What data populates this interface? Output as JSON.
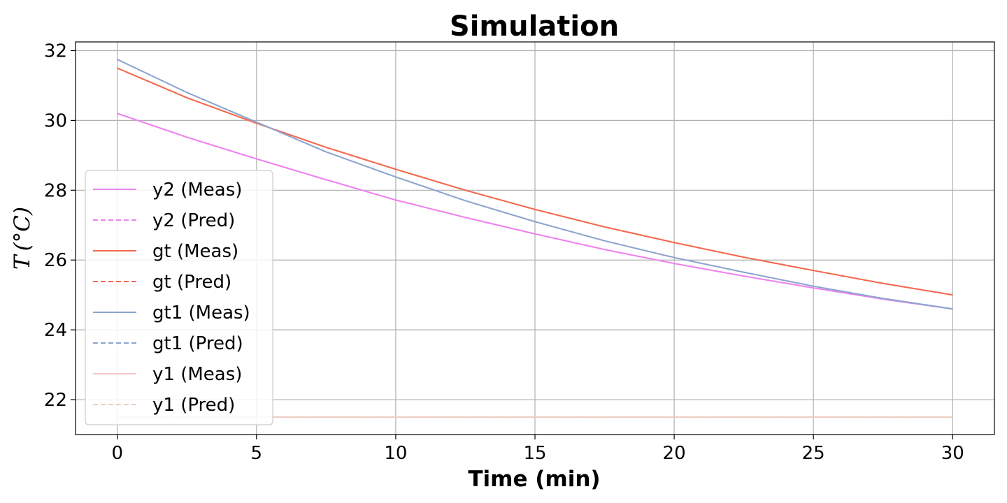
{
  "chart_data": {
    "type": "line",
    "title": "Simulation",
    "xlabel": "Time (min)",
    "ylabel_main": "T",
    "ylabel_unit": "(°C)",
    "xlim": [
      -1.5,
      31.5
    ],
    "ylim": [
      21.0,
      32.25
    ],
    "xticks": [
      0,
      5,
      10,
      15,
      20,
      25,
      30
    ],
    "yticks": [
      22,
      24,
      26,
      28,
      30,
      32
    ],
    "grid": true,
    "legend_position": "lower-left",
    "x": [
      0,
      2.5,
      5,
      7.5,
      10,
      12.5,
      15,
      17.5,
      20,
      22.5,
      25,
      27.5,
      30
    ],
    "series": [
      {
        "name": "y2 (Meas)",
        "color": "#ee82ee",
        "dash": "solid",
        "values": [
          30.2,
          29.52,
          28.9,
          28.3,
          27.72,
          27.22,
          26.75,
          26.3,
          25.9,
          25.54,
          25.2,
          24.88,
          24.6
        ]
      },
      {
        "name": "y2 (Pred)",
        "color": "#ee82ee",
        "dash": "dashed",
        "values": [
          30.2,
          29.52,
          28.9,
          28.3,
          27.72,
          27.22,
          26.75,
          26.3,
          25.9,
          25.54,
          25.2,
          24.88,
          24.6
        ]
      },
      {
        "name": "gt (Meas)",
        "color": "#f4694f",
        "dash": "solid",
        "values": [
          31.5,
          30.65,
          29.92,
          29.23,
          28.6,
          28.0,
          27.45,
          26.95,
          26.5,
          26.08,
          25.7,
          25.33,
          25.0
        ]
      },
      {
        "name": "gt (Pred)",
        "color": "#f4694f",
        "dash": "dashed",
        "values": [
          31.5,
          30.65,
          29.92,
          29.23,
          28.6,
          28.0,
          27.45,
          26.95,
          26.5,
          26.08,
          25.7,
          25.33,
          25.0
        ]
      },
      {
        "name": "gt1 (Meas)",
        "color": "#8ea5cf",
        "dash": "solid",
        "values": [
          31.75,
          30.8,
          29.95,
          29.1,
          28.38,
          27.7,
          27.1,
          26.55,
          26.07,
          25.65,
          25.25,
          24.9,
          24.6
        ]
      },
      {
        "name": "gt1 (Pred)",
        "color": "#8ea5cf",
        "dash": "dashed",
        "values": [
          31.75,
          30.8,
          29.95,
          29.1,
          28.38,
          27.7,
          27.1,
          26.55,
          26.07,
          25.65,
          25.25,
          24.9,
          24.6
        ]
      },
      {
        "name": "y1 (Meas)",
        "color": "#f7c6c6",
        "dash": "solid",
        "values": [
          21.5,
          21.5,
          21.5,
          21.5,
          21.5,
          21.5,
          21.5,
          21.5,
          21.5,
          21.5,
          21.5,
          21.5,
          21.5
        ]
      },
      {
        "name": "y1 (Pred)",
        "color": "#e8d0c0",
        "dash": "dashed",
        "values": [
          21.5,
          21.5,
          21.5,
          21.5,
          21.5,
          21.5,
          21.5,
          21.5,
          21.5,
          21.5,
          21.5,
          21.5,
          21.5
        ]
      }
    ]
  }
}
